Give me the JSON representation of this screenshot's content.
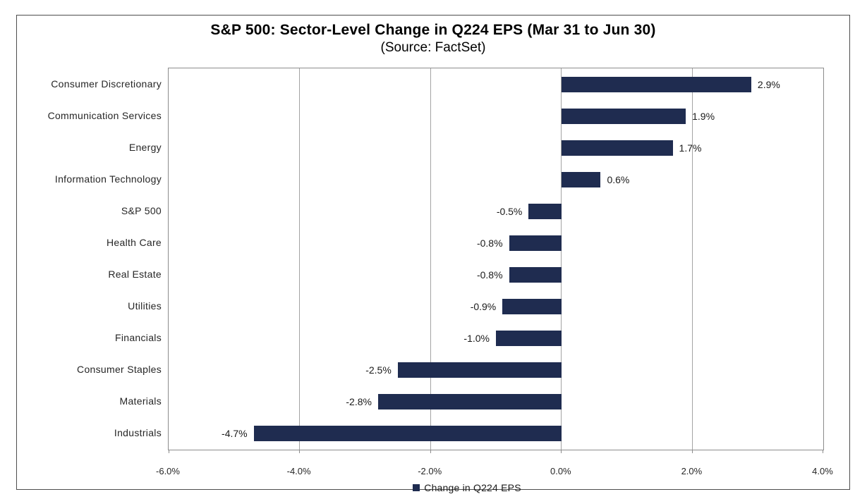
{
  "chart_data": {
    "type": "bar",
    "orientation": "horizontal",
    "title": "S&P 500: Sector-Level Change in Q224 EPS (Mar 31 to Jun 30)",
    "subtitle": "(Source: FactSet)",
    "series_name": "Change in Q224 EPS",
    "categories": [
      "Consumer Discretionary",
      "Communication Services",
      "Energy",
      "Information Technology",
      "S&P 500",
      "Health Care",
      "Real Estate",
      "Utilities",
      "Financials",
      "Consumer Staples",
      "Materials",
      "Industrials"
    ],
    "values": [
      2.9,
      1.9,
      1.7,
      0.6,
      -0.5,
      -0.8,
      -0.8,
      -0.9,
      -1.0,
      -2.5,
      -2.8,
      -4.7
    ],
    "data_labels": [
      "2.9%",
      "1.9%",
      "1.7%",
      "0.6%",
      "-0.5%",
      "-0.8%",
      "-0.8%",
      "-0.9%",
      "-1.0%",
      "-2.5%",
      "-2.8%",
      "-4.7%"
    ],
    "xlabel": "",
    "ylabel": "",
    "xlim": [
      -6.0,
      4.0
    ],
    "x_tick_values": [
      -6,
      -4,
      -2,
      0,
      2,
      4
    ],
    "x_tick_labels": [
      "-6.0%",
      "-4.0%",
      "-2.0%",
      "0.0%",
      "2.0%",
      "4.0%"
    ],
    "grid": "vertical gridlines on",
    "legend_position": "bottom",
    "colors": {
      "bar": "#1F2C50",
      "gridline": "#a3a3a3",
      "plot_border": "#8c8c8c",
      "frame_border": "#4d4d4d",
      "tick": "#8c8c8c",
      "background": "#ffffff"
    }
  }
}
